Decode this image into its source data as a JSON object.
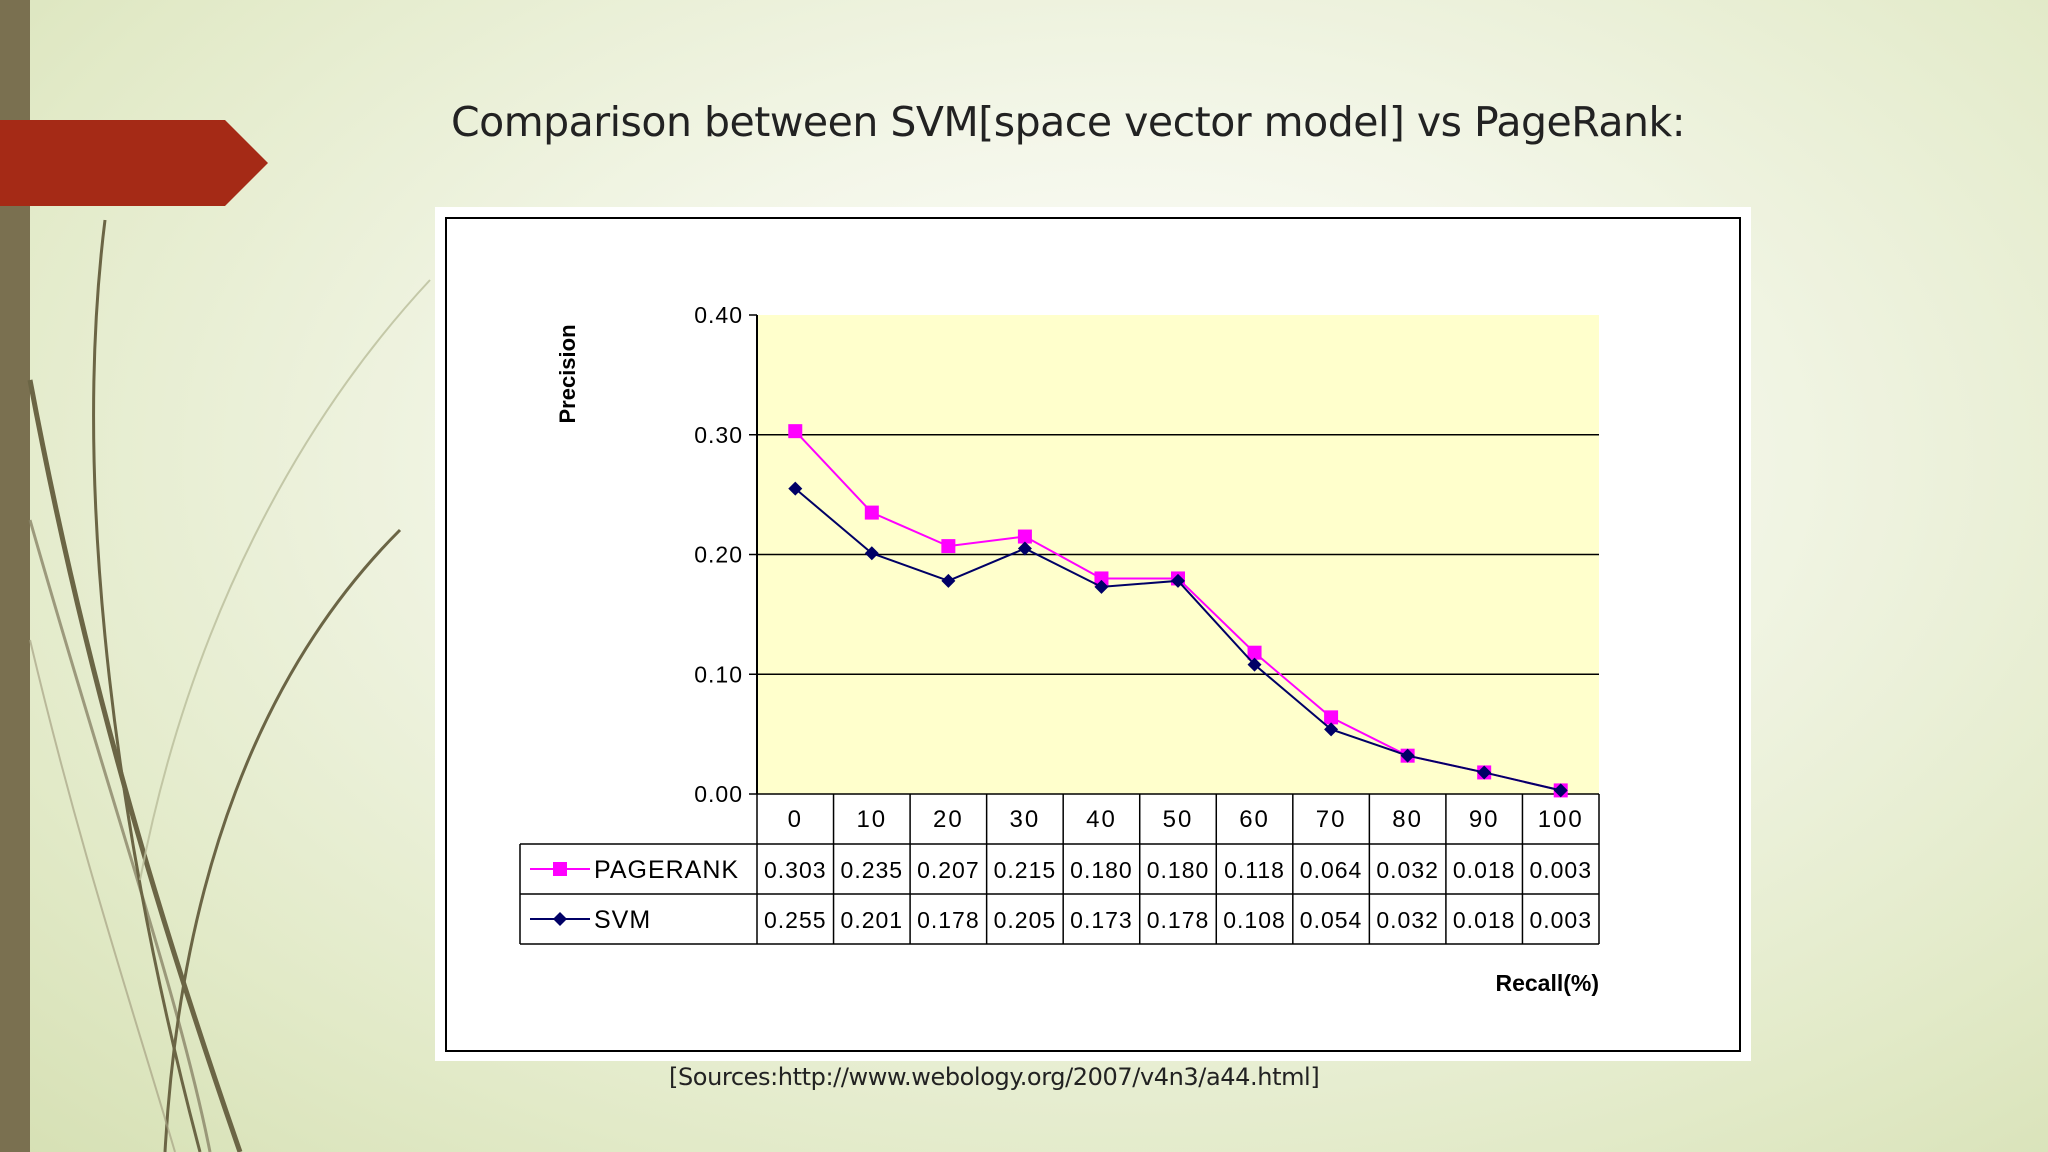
{
  "slide": {
    "title": "Comparison between SVM[space vector model] vs PageRank:",
    "source": "[Sources:http://www.webology.org/2007/v4n3/a44.html]"
  },
  "colors": {
    "pagerank": "#ff00ff",
    "svm": "#000066",
    "plot_bg": "#ffffcc",
    "ribbon": "#a52a16",
    "left_bar": "#7a7050"
  },
  "chart_data": {
    "type": "line",
    "ylabel": "Precision",
    "xlabel": "Recall(%)",
    "categories": [
      "0",
      "10",
      "20",
      "30",
      "40",
      "50",
      "60",
      "70",
      "80",
      "90",
      "100"
    ],
    "ylim": [
      0,
      0.4
    ],
    "yticks": [
      "0.00",
      "0.10",
      "0.20",
      "0.30",
      "0.40"
    ],
    "grid": true,
    "legend": "data-table",
    "series": [
      {
        "name": "PAGERANK",
        "values": [
          0.303,
          0.235,
          0.207,
          0.215,
          0.18,
          0.18,
          0.118,
          0.064,
          0.032,
          0.018,
          0.003
        ],
        "labels": [
          "0.303",
          "0.235",
          "0.207",
          "0.215",
          "0.180",
          "0.180",
          "0.118",
          "0.064",
          "0.032",
          "0.018",
          "0.003"
        ]
      },
      {
        "name": "SVM",
        "values": [
          0.255,
          0.201,
          0.178,
          0.205,
          0.173,
          0.178,
          0.108,
          0.054,
          0.032,
          0.018,
          0.003
        ],
        "labels": [
          "0.255",
          "0.201",
          "0.178",
          "0.205",
          "0.173",
          "0.178",
          "0.108",
          "0.054",
          "0.032",
          "0.018",
          "0.003"
        ]
      }
    ]
  }
}
